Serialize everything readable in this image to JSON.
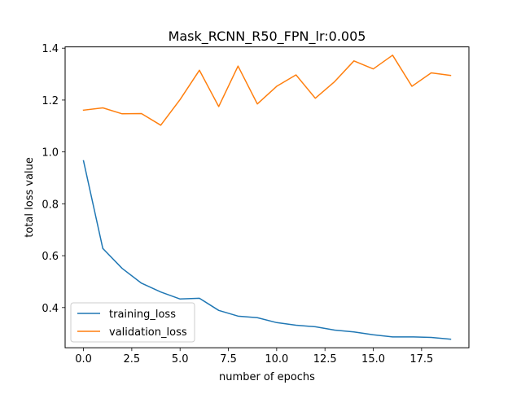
{
  "chart_data": {
    "type": "line",
    "title": "Mask_RCNN_R50_FPN_lr:0.005",
    "xlabel": "number of epochs",
    "ylabel": "total loss value",
    "xlim": [
      -0.95,
      19.95
    ],
    "ylim": [
      0.245,
      1.405
    ],
    "xticks": [
      0.0,
      2.5,
      5.0,
      7.5,
      10.0,
      12.5,
      15.0,
      17.5
    ],
    "xtick_labels": [
      "0.0",
      "2.5",
      "5.0",
      "7.5",
      "10.0",
      "12.5",
      "15.0",
      "17.5"
    ],
    "yticks": [
      0.4,
      0.6,
      0.8,
      1.0,
      1.2,
      1.4
    ],
    "ytick_labels": [
      "0.4",
      "0.6",
      "0.8",
      "1.0",
      "1.2",
      "1.4"
    ],
    "grid": false,
    "legend_position": "lower-left",
    "x": [
      0,
      1,
      2,
      3,
      4,
      5,
      6,
      7,
      8,
      9,
      10,
      11,
      12,
      13,
      14,
      15,
      16,
      17,
      18,
      19
    ],
    "series": [
      {
        "name": "training_loss",
        "color": "#1f77b4",
        "values": [
          0.966,
          0.628,
          0.551,
          0.494,
          0.46,
          0.433,
          0.436,
          0.389,
          0.367,
          0.361,
          0.342,
          0.332,
          0.326,
          0.313,
          0.306,
          0.295,
          0.287,
          0.287,
          0.285,
          0.278
        ]
      },
      {
        "name": "validation_loss",
        "color": "#ff7f0e",
        "values": [
          1.161,
          1.17,
          1.147,
          1.148,
          1.103,
          1.202,
          1.315,
          1.175,
          1.331,
          1.185,
          1.253,
          1.297,
          1.207,
          1.271,
          1.351,
          1.32,
          1.373,
          1.253,
          1.305,
          1.295
        ]
      }
    ]
  }
}
